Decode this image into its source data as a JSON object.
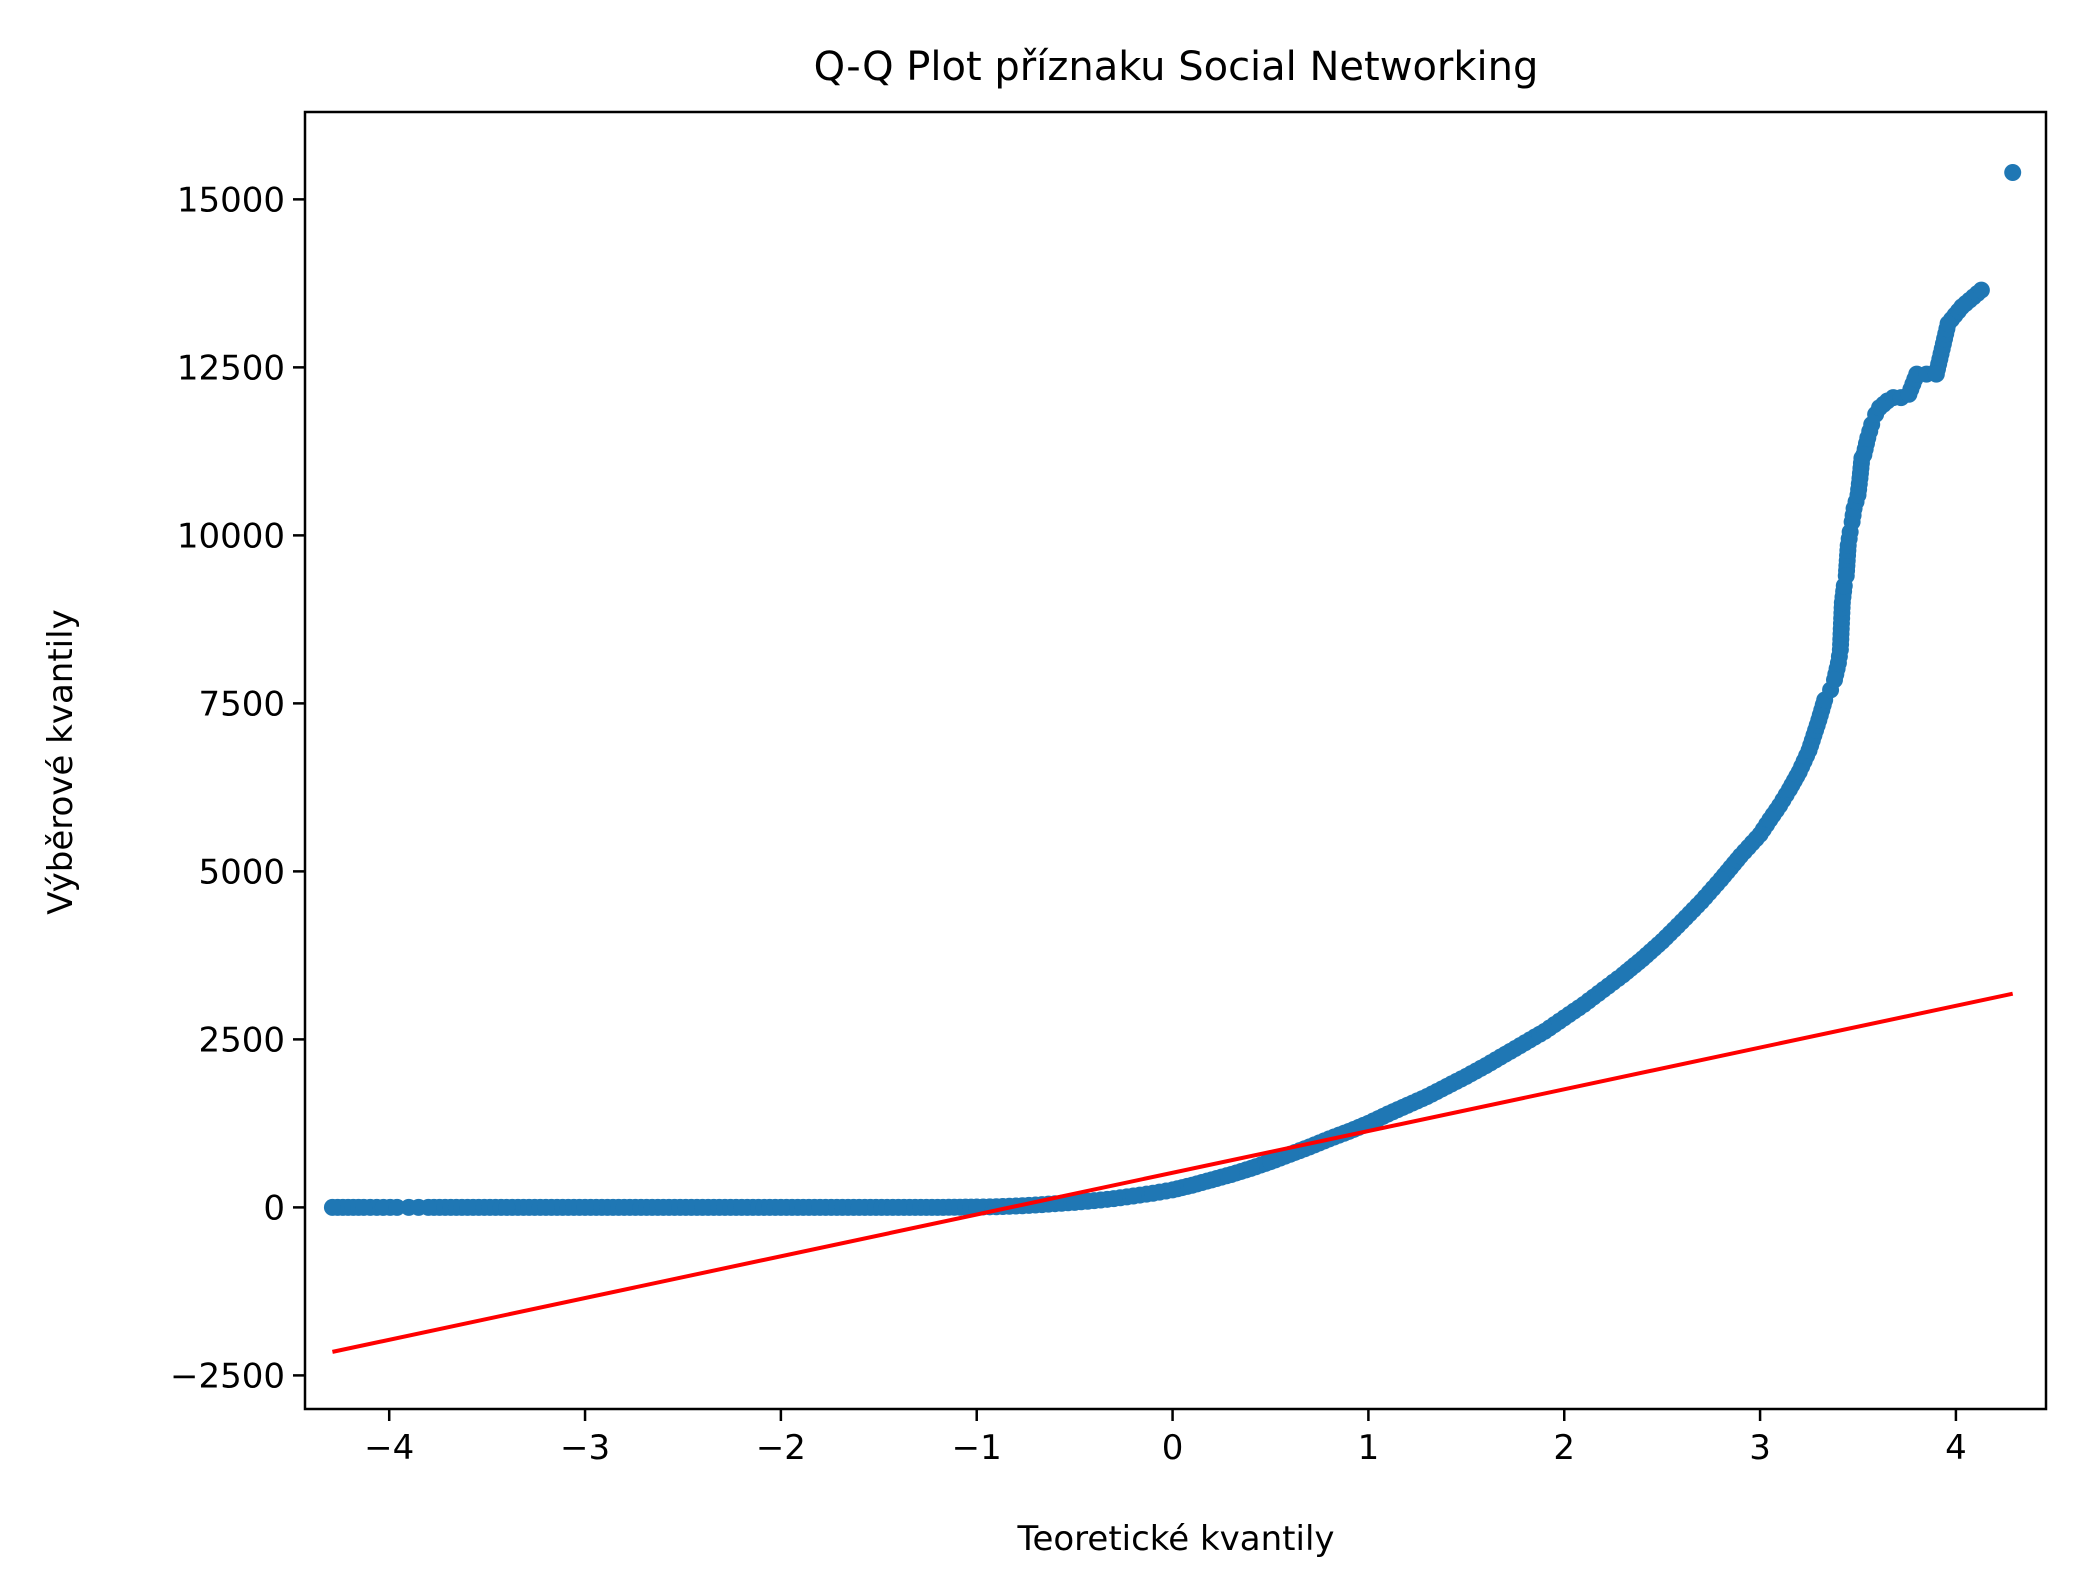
{
  "chart_data": {
    "type": "scatter",
    "title": "Q-Q Plot příznaku Social Networking",
    "xlabel": "Teoretické kvantily",
    "ylabel": "Výběrové kvantily",
    "xlim": [
      -4.43,
      4.46
    ],
    "ylim": [
      -3000,
      16300
    ],
    "xticks": [
      -4,
      -3,
      -2,
      -1,
      0,
      1,
      2,
      3,
      4
    ],
    "xtick_labels": [
      "−4",
      "−3",
      "−2",
      "−1",
      "0",
      "1",
      "2",
      "3",
      "4"
    ],
    "yticks": [
      -2500,
      0,
      2500,
      5000,
      7500,
      10000,
      12500,
      15000
    ],
    "ytick_labels": [
      "−2500",
      "0",
      "2500",
      "5000",
      "7500",
      "10000",
      "12500",
      "15000"
    ],
    "grid": false,
    "colors": {
      "points": "#1f77b4",
      "fit_line": "#ff0000",
      "axes": "#000000"
    },
    "series": [
      {
        "kind": "points",
        "x": [
          -4.29,
          -4.13,
          -4.03,
          -3.96,
          -3.9,
          -3.85,
          -3.8,
          -3.6,
          -3.4,
          -3.2,
          -3.0,
          -2.8,
          -2.6,
          -2.4,
          -2.2,
          -2.0,
          -1.8,
          -1.6,
          -1.4,
          -1.2,
          -1.0,
          -0.9,
          -0.8,
          -0.7,
          -0.6,
          -0.5,
          -0.4,
          -0.3,
          -0.2,
          -0.1,
          0.0,
          0.1,
          0.2,
          0.3,
          0.4,
          0.5,
          0.6,
          0.7,
          0.8,
          0.9,
          1.0,
          1.1,
          1.2,
          1.3,
          1.4,
          1.5,
          1.6,
          1.7,
          1.8,
          1.9,
          2.0,
          2.1,
          2.2,
          2.3,
          2.4,
          2.5,
          2.6,
          2.7,
          2.8,
          2.9,
          3.0,
          3.05,
          3.1,
          3.15,
          3.2,
          3.25,
          3.3,
          3.33,
          3.36,
          3.38,
          3.4,
          3.41,
          3.42,
          3.43,
          3.44,
          3.45,
          3.46,
          3.47,
          3.48,
          3.49,
          3.5,
          3.51,
          3.52,
          3.53,
          3.55,
          3.57,
          3.59,
          3.61,
          3.63,
          3.65,
          3.68,
          3.72,
          3.76,
          3.8,
          3.85,
          3.9,
          3.96,
          4.03,
          4.13,
          4.29
        ],
        "y": [
          0,
          0,
          0,
          0,
          0,
          0,
          0,
          0,
          0,
          0,
          0,
          0,
          0,
          0,
          0,
          0,
          0,
          0,
          0,
          0,
          5,
          10,
          20,
          35,
          55,
          75,
          100,
          130,
          170,
          210,
          260,
          330,
          410,
          490,
          580,
          680,
          790,
          900,
          1020,
          1130,
          1250,
          1390,
          1520,
          1650,
          1800,
          1950,
          2110,
          2280,
          2450,
          2620,
          2820,
          3020,
          3240,
          3460,
          3700,
          3960,
          4250,
          4550,
          4880,
          5230,
          5550,
          5770,
          5980,
          6220,
          6480,
          6800,
          7250,
          7550,
          7700,
          7850,
          8100,
          8300,
          9000,
          9250,
          9400,
          9850,
          10050,
          10200,
          10400,
          10500,
          10600,
          10850,
          11150,
          11200,
          11450,
          11650,
          11800,
          11900,
          11950,
          12000,
          12050,
          12050,
          12100,
          12400,
          12400,
          12400,
          13150,
          13400,
          13650,
          15400
        ]
      },
      {
        "kind": "line",
        "x": [
          -4.29,
          4.29
        ],
        "y": [
          -2150,
          3180
        ]
      }
    ]
  }
}
